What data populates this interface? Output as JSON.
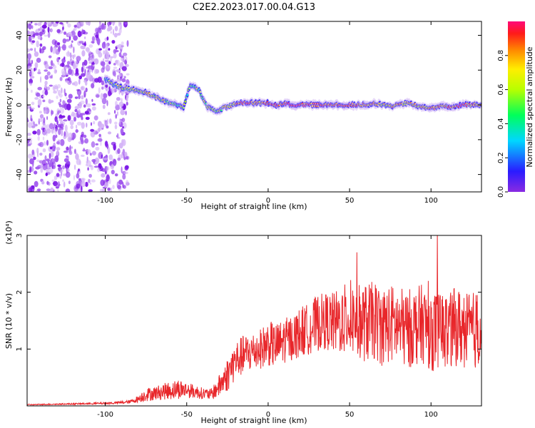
{
  "title": "C2E2.2023.017.00.04.G13",
  "colors": {
    "snr_line": "#e8262a",
    "background": "#ffffff",
    "axis": "#000000"
  },
  "chart_data": [
    {
      "type": "heatmap",
      "title": "C2E2.2023.017.00.04.G13",
      "xlabel": "Height of straight line (km)",
      "ylabel": "Frequency (Hz)",
      "xlim": [
        -148,
        131
      ],
      "ylim": [
        -50,
        48
      ],
      "x_ticks": [
        -100,
        -50,
        0,
        50,
        100
      ],
      "y_ticks": [
        -40,
        -20,
        0,
        20,
        40
      ],
      "colorbar": {
        "label": "Normalized spectral amplitude",
        "range": [
          0.0,
          1.0
        ],
        "ticks": [
          0.0,
          0.2,
          0.4,
          0.6,
          0.8
        ],
        "colormap": [
          "#8a2be2",
          "#2a1bff",
          "#00d7ff",
          "#00ff5a",
          "#b8ff00",
          "#ffee00",
          "#ff8a00",
          "#ff1a1a",
          "#ff0a7a"
        ]
      },
      "noise_region_x": [
        -148,
        -90
      ],
      "ridge": {
        "x": [
          -100,
          -95,
          -90,
          -85,
          -80,
          -75,
          -70,
          -65,
          -60,
          -55,
          -52,
          -48,
          -45,
          -42,
          -40,
          -37,
          -34,
          -31,
          -28,
          -25,
          -22,
          -18,
          -15,
          -10,
          -5,
          0,
          5,
          10,
          15,
          20,
          25,
          30,
          35,
          40,
          45,
          50,
          55,
          60,
          65,
          70,
          75,
          80,
          85,
          90,
          95,
          100,
          105,
          110,
          115,
          120,
          125,
          131
        ],
        "frequency": [
          15,
          12,
          10,
          9,
          8,
          7,
          5,
          3,
          1,
          0,
          -1,
          11,
          10,
          8,
          3,
          -1,
          -3,
          -4,
          -2,
          -1,
          0,
          1,
          1,
          1,
          1,
          1,
          0,
          1,
          0,
          0,
          0,
          0,
          0,
          0,
          0,
          0,
          0,
          0,
          1,
          0,
          -1,
          0,
          1,
          0,
          -1,
          -2,
          -1,
          -1,
          -1,
          0,
          0,
          0
        ],
        "amplitude": [
          0.3,
          0.4,
          0.5,
          0.55,
          0.55,
          0.6,
          0.55,
          0.55,
          0.5,
          0.45,
          0.45,
          0.35,
          0.4,
          0.45,
          0.45,
          0.5,
          0.55,
          0.55,
          0.5,
          0.55,
          0.6,
          0.75,
          0.85,
          0.8,
          0.75,
          0.85,
          0.8,
          0.85,
          0.9,
          0.85,
          0.8,
          0.85,
          0.8,
          0.75,
          0.8,
          0.85,
          0.75,
          0.8,
          0.75,
          0.6,
          0.65,
          0.7,
          0.6,
          0.65,
          0.6,
          0.7,
          0.75,
          0.7,
          0.8,
          0.85,
          0.75,
          0.6
        ]
      }
    },
    {
      "type": "line",
      "xlabel": "Height of straight line (km)",
      "ylabel": "SNR (10 * v/v)",
      "y_multiplier": "(x10⁴)",
      "xlim": [
        -148,
        131
      ],
      "ylim": [
        0,
        3
      ],
      "x_ticks": [
        -100,
        -50,
        0,
        50,
        100
      ],
      "y_ticks": [
        1,
        2,
        3
      ],
      "series": [
        {
          "x": [
            -148,
            -130,
            -110,
            -95,
            -85,
            -80,
            -75,
            -70,
            -65,
            -60,
            -55,
            -50,
            -45,
            -40,
            -35,
            -30,
            -25,
            -20,
            -15,
            -10,
            -5,
            0,
            5,
            10,
            15,
            20,
            25,
            30,
            35,
            40,
            45,
            50,
            55,
            60,
            65,
            70,
            75,
            80,
            85,
            90,
            95,
            100,
            105,
            110,
            115,
            120,
            125,
            131
          ],
          "y": [
            0.02,
            0.03,
            0.04,
            0.05,
            0.07,
            0.12,
            0.2,
            0.22,
            0.25,
            0.27,
            0.3,
            0.28,
            0.25,
            0.22,
            0.2,
            0.35,
            0.55,
            0.8,
            0.9,
            0.95,
            1.0,
            1.1,
            1.05,
            1.15,
            1.2,
            1.3,
            1.35,
            1.45,
            1.5,
            1.45,
            1.5,
            1.55,
            1.5,
            1.45,
            1.5,
            1.4,
            1.45,
            1.4,
            1.35,
            1.4,
            1.45,
            1.3,
            1.35,
            1.3,
            1.4,
            1.35,
            1.3,
            1.4
          ],
          "noise": [
            0.01,
            0.01,
            0.015,
            0.02,
            0.03,
            0.06,
            0.12,
            0.12,
            0.14,
            0.16,
            0.18,
            0.14,
            0.12,
            0.1,
            0.1,
            0.2,
            0.3,
            0.35,
            0.35,
            0.35,
            0.35,
            0.4,
            0.4,
            0.4,
            0.4,
            0.45,
            0.45,
            0.5,
            0.5,
            0.55,
            0.6,
            0.65,
            0.65,
            0.7,
            0.7,
            0.7,
            0.7,
            0.7,
            0.7,
            0.7,
            0.7,
            0.7,
            0.7,
            0.7,
            0.7,
            0.7,
            0.7,
            0.7
          ]
        }
      ]
    }
  ]
}
